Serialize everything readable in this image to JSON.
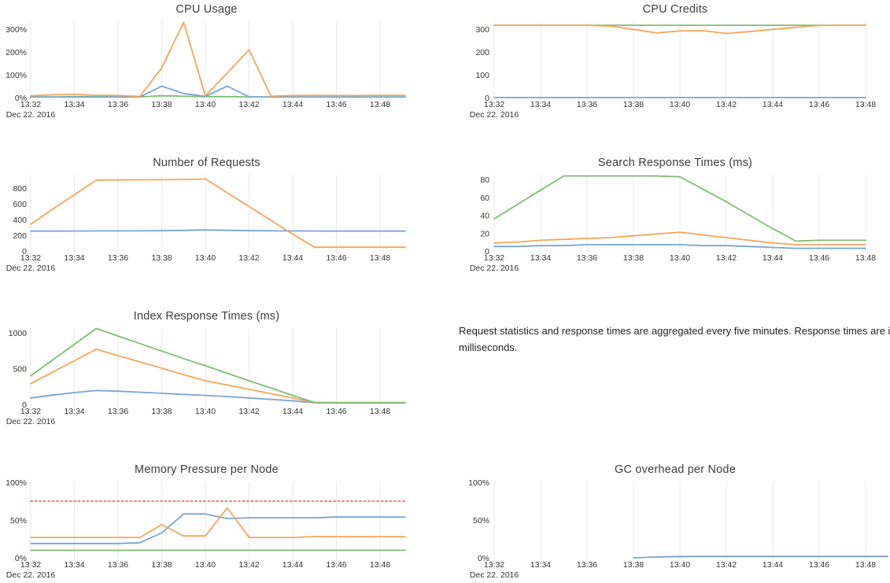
{
  "colors": {
    "blue": "#79a5d3",
    "orange": "#f5a55a",
    "green": "#7fbe72",
    "red": "#e8807e",
    "gridline": "#e8e8e8",
    "tick_text": "#333333",
    "title_text": "#3d3d3d"
  },
  "note": {
    "text": "Request statistics and response times are aggregated every five minutes. Response times are in milliseconds."
  },
  "chart_data": [
    {
      "type": "line",
      "id": "cpu-usage",
      "title": "CPU Usage",
      "col": "left",
      "row": 0,
      "x": [
        "13:32",
        "13:33",
        "13:34",
        "13:35",
        "13:36",
        "13:37",
        "13:38",
        "13:39",
        "13:40",
        "13:41",
        "13:42",
        "13:43",
        "13:44",
        "13:45",
        "13:46",
        "13:47",
        "13:48"
      ],
      "x_tick_labels": [
        "13:32",
        "13:34",
        "13:36",
        "13:38",
        "13:40",
        "13:42",
        "13:44",
        "13:46",
        "13:48"
      ],
      "date_label": "Dec 22. 2016",
      "y_ticks": [
        {
          "v": 0,
          "label": "0%"
        },
        {
          "v": 100,
          "label": "100%"
        },
        {
          "v": 200,
          "label": "200%"
        },
        {
          "v": 300,
          "label": "300%"
        }
      ],
      "ylim": [
        0,
        331
      ],
      "grid": "vertical",
      "legend": "none",
      "extend": true,
      "series": [
        {
          "name": "series-green",
          "color": "green",
          "dashed": false,
          "values": [
            3,
            3,
            4,
            4,
            3,
            3,
            8,
            6,
            4,
            4,
            3,
            3,
            3,
            3,
            3,
            3,
            3
          ]
        },
        {
          "name": "series-blue",
          "color": "blue",
          "dashed": false,
          "values": [
            2,
            2,
            2,
            2,
            2,
            3,
            50,
            18,
            5,
            50,
            3,
            2,
            2,
            2,
            2,
            2,
            2
          ]
        },
        {
          "name": "series-orange",
          "color": "orange",
          "dashed": false,
          "values": [
            8,
            12,
            14,
            10,
            9,
            5,
            130,
            330,
            8,
            108,
            210,
            6,
            9,
            10,
            9,
            9,
            10
          ]
        }
      ]
    },
    {
      "type": "line",
      "id": "cpu-credits",
      "title": "CPU Credits",
      "col": "right",
      "row": 0,
      "x": [
        "13:32",
        "13:33",
        "13:34",
        "13:35",
        "13:36",
        "13:37",
        "13:38",
        "13:39",
        "13:40",
        "13:41",
        "13:42",
        "13:43",
        "13:44",
        "13:45",
        "13:46",
        "13:47",
        "13:48"
      ],
      "x_tick_labels": [
        "13:32",
        "13:34",
        "13:36",
        "13:38",
        "13:40",
        "13:42",
        "13:44",
        "13:46",
        "13:48"
      ],
      "date_label": "Dec 22. 2016",
      "y_ticks": [
        {
          "v": 0,
          "label": "0"
        },
        {
          "v": 100,
          "label": "100"
        },
        {
          "v": 200,
          "label": "200"
        },
        {
          "v": 300,
          "label": "300"
        }
      ],
      "ylim": [
        0,
        331
      ],
      "grid": "vertical",
      "legend": "none",
      "extend": false,
      "series": [
        {
          "name": "series-blue",
          "color": "blue",
          "dashed": false,
          "values": [
            0,
            0,
            0,
            0,
            0,
            0,
            0,
            0,
            0,
            0,
            0,
            0,
            0,
            0,
            0,
            0,
            0
          ]
        },
        {
          "name": "series-green",
          "color": "green",
          "dashed": false,
          "values": [
            317,
            317,
            317,
            317,
            317,
            317,
            317,
            317,
            317,
            317,
            317,
            317,
            317,
            317,
            317,
            317,
            317
          ]
        },
        {
          "name": "series-orange",
          "color": "orange",
          "dashed": false,
          "values": [
            317,
            317,
            317,
            317,
            317,
            313,
            299,
            283,
            292,
            293,
            281,
            289,
            299,
            308,
            316,
            317,
            317
          ]
        }
      ]
    },
    {
      "type": "line",
      "id": "number-of-requests",
      "title": "Number of Requests",
      "col": "left",
      "row": 1,
      "x": [
        "13:32",
        "13:33",
        "13:34",
        "13:35",
        "13:36",
        "13:37",
        "13:38",
        "13:39",
        "13:40",
        "13:41",
        "13:42",
        "13:43",
        "13:44",
        "13:45",
        "13:46",
        "13:47",
        "13:48"
      ],
      "x_tick_labels": [
        "13:32",
        "13:34",
        "13:36",
        "13:38",
        "13:40",
        "13:42",
        "13:44",
        "13:46",
        "13:48"
      ],
      "date_label": "Dec 22. 2016",
      "y_ticks": [
        {
          "v": 0,
          "label": "0"
        },
        {
          "v": 200,
          "label": "200"
        },
        {
          "v": 400,
          "label": "400"
        },
        {
          "v": 600,
          "label": "600"
        },
        {
          "v": 800,
          "label": "800"
        }
      ],
      "ylim": [
        0,
        960
      ],
      "grid": "vertical",
      "legend": "none",
      "extend": true,
      "series": [
        {
          "name": "series-blue",
          "color": "blue",
          "dashed": false,
          "values": [
            253,
            253,
            254,
            255,
            255,
            256,
            258,
            262,
            268,
            263,
            258,
            256,
            255,
            254,
            253,
            253,
            253
          ]
        },
        {
          "name": "series-orange",
          "color": "orange",
          "dashed": false,
          "values": [
            340,
            530,
            715,
            900,
            903,
            905,
            906,
            909,
            915,
            740,
            565,
            390,
            215,
            48,
            48,
            48,
            48
          ]
        }
      ]
    },
    {
      "type": "line",
      "id": "search-response-times",
      "title": "Search Response Times (ms)",
      "col": "right",
      "row": 1,
      "x": [
        "13:32",
        "13:33",
        "13:34",
        "13:35",
        "13:36",
        "13:37",
        "13:38",
        "13:39",
        "13:40",
        "13:41",
        "13:42",
        "13:43",
        "13:44",
        "13:45",
        "13:46",
        "13:47",
        "13:48"
      ],
      "x_tick_labels": [
        "13:32",
        "13:34",
        "13:36",
        "13:38",
        "13:40",
        "13:42",
        "13:44",
        "13:46",
        "13:48"
      ],
      "date_label": "Dec 22. 2016",
      "y_ticks": [
        {
          "v": 0,
          "label": "0"
        },
        {
          "v": 20,
          "label": "20"
        },
        {
          "v": 40,
          "label": "40"
        },
        {
          "v": 60,
          "label": "60"
        },
        {
          "v": 80,
          "label": "80"
        }
      ],
      "ylim": [
        0,
        84.5
      ],
      "grid": "vertical",
      "legend": "none",
      "extend": false,
      "series": [
        {
          "name": "series-blue",
          "color": "blue",
          "dashed": false,
          "values": [
            5,
            5,
            6,
            6,
            7,
            7,
            7,
            7,
            7,
            6,
            6,
            5,
            4,
            3,
            3,
            3,
            3
          ]
        },
        {
          "name": "series-orange",
          "color": "orange",
          "dashed": false,
          "values": [
            9,
            10,
            12,
            13,
            14,
            15,
            17,
            19,
            21,
            18,
            15,
            12,
            9,
            7,
            7,
            7,
            7
          ]
        },
        {
          "name": "series-green",
          "color": "green",
          "dashed": false,
          "values": [
            36,
            52,
            68,
            84,
            84,
            84,
            84,
            84,
            83,
            69,
            55,
            40,
            25,
            11,
            12,
            12,
            12
          ]
        }
      ]
    },
    {
      "type": "line",
      "id": "index-response-times",
      "title": "Index Response Times (ms)",
      "col": "left",
      "row": 2,
      "x": [
        "13:32",
        "13:33",
        "13:34",
        "13:35",
        "13:36",
        "13:37",
        "13:38",
        "13:39",
        "13:40",
        "13:41",
        "13:42",
        "13:43",
        "13:44",
        "13:45",
        "13:46",
        "13:47",
        "13:48"
      ],
      "x_tick_labels": [
        "13:32",
        "13:34",
        "13:36",
        "13:38",
        "13:40",
        "13:42",
        "13:44",
        "13:46",
        "13:48"
      ],
      "date_label": "Dec 22. 2016",
      "y_ticks": [
        {
          "v": 0,
          "label": "0"
        },
        {
          "v": 500,
          "label": "500"
        },
        {
          "v": 1000,
          "label": "1000"
        }
      ],
      "ylim": [
        0,
        1055
      ],
      "grid": "vertical",
      "legend": "none",
      "extend": true,
      "series": [
        {
          "name": "series-blue",
          "color": "blue",
          "dashed": false,
          "values": [
            90,
            130,
            165,
            195,
            185,
            170,
            155,
            140,
            125,
            110,
            90,
            70,
            50,
            22,
            20,
            20,
            20
          ]
        },
        {
          "name": "series-orange",
          "color": "orange",
          "dashed": false,
          "values": [
            290,
            450,
            610,
            770,
            680,
            595,
            505,
            415,
            330,
            270,
            210,
            150,
            90,
            25,
            22,
            22,
            22
          ]
        },
        {
          "name": "series-green",
          "color": "green",
          "dashed": false,
          "values": [
            400,
            620,
            840,
            1060,
            955,
            850,
            745,
            640,
            540,
            435,
            330,
            230,
            125,
            28,
            25,
            25,
            25
          ]
        }
      ]
    },
    {
      "type": "line",
      "id": "memory-pressure-per-node",
      "title": "Memory Pressure per Node",
      "col": "left",
      "row": 3,
      "x": [
        "13:32",
        "13:33",
        "13:34",
        "13:35",
        "13:36",
        "13:37",
        "13:38",
        "13:39",
        "13:40",
        "13:41",
        "13:42",
        "13:43",
        "13:44",
        "13:45",
        "13:46",
        "13:47",
        "13:48"
      ],
      "x_tick_labels": [
        "13:32",
        "13:34",
        "13:36",
        "13:38",
        "13:40",
        "13:42",
        "13:44",
        "13:46",
        "13:48"
      ],
      "date_label": "Dec 22. 2016",
      "y_ticks": [
        {
          "v": 0,
          "label": "0%"
        },
        {
          "v": 50,
          "label": "50%"
        },
        {
          "v": 100,
          "label": "100%"
        }
      ],
      "ylim": [
        0,
        100
      ],
      "grid": "vertical",
      "legend": "none",
      "extend": true,
      "series": [
        {
          "name": "threshold-dotted",
          "color": "red",
          "dashed": true,
          "values": [
            75,
            75,
            75,
            75,
            75,
            75,
            75,
            75,
            75,
            75,
            75,
            75,
            75,
            75,
            75,
            75,
            75
          ]
        },
        {
          "name": "series-green",
          "color": "green",
          "dashed": false,
          "values": [
            10,
            10,
            10,
            10,
            10,
            10,
            10,
            10,
            10,
            10,
            10,
            10,
            10,
            10,
            10,
            10,
            10
          ]
        },
        {
          "name": "series-blue",
          "color": "blue",
          "dashed": false,
          "values": [
            19,
            19,
            19,
            19,
            19,
            20,
            33,
            58,
            58,
            52,
            53,
            53,
            53,
            53,
            54,
            54,
            54
          ]
        },
        {
          "name": "series-orange",
          "color": "orange",
          "dashed": false,
          "values": [
            27,
            27,
            27,
            27,
            27,
            27,
            44,
            29,
            29,
            66,
            27,
            27,
            27,
            28,
            28,
            28,
            28
          ]
        }
      ]
    },
    {
      "type": "line",
      "id": "gc-overhead-per-node",
      "title": "GC overhead per Node",
      "col": "right",
      "row": 3,
      "x": [
        "13:32",
        "13:33",
        "13:34",
        "13:35",
        "13:36",
        "13:37",
        "13:38",
        "13:39",
        "13:40",
        "13:41",
        "13:42",
        "13:43",
        "13:44",
        "13:45",
        "13:46",
        "13:47",
        "13:48"
      ],
      "x_tick_labels": [
        "13:32",
        "13:34",
        "13:36",
        "13:38",
        "13:40",
        "13:42",
        "13:44",
        "13:46",
        "13:48"
      ],
      "date_label": "Dec 22. 2016",
      "y_ticks": [
        {
          "v": 0,
          "label": "0%"
        },
        {
          "v": 50,
          "label": "50%"
        },
        {
          "v": 100,
          "label": "100%"
        }
      ],
      "ylim": [
        0,
        100
      ],
      "grid": "vertical",
      "legend": "none",
      "extend": true,
      "series": [
        {
          "name": "series-orange",
          "color": "orange",
          "dashed": false,
          "values": [
            null,
            null,
            null,
            null,
            null,
            null,
            null,
            1.2,
            1.6,
            1.8,
            1.8,
            1.8,
            1.8,
            1.8,
            1.8,
            1.8,
            1.8
          ]
        },
        {
          "name": "series-blue",
          "color": "blue",
          "dashed": false,
          "values": [
            null,
            null,
            null,
            null,
            null,
            null,
            0,
            1,
            1.8,
            2,
            2,
            2,
            2,
            2,
            2,
            2,
            2
          ]
        }
      ]
    }
  ]
}
